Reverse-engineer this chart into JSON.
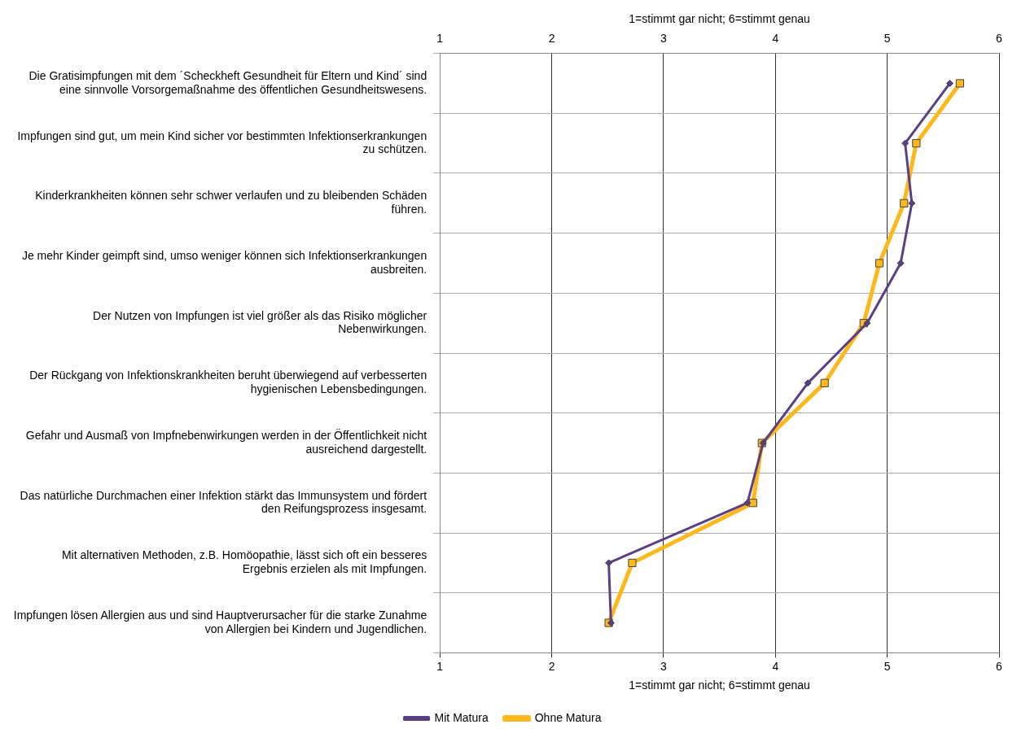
{
  "chart_data": {
    "type": "line",
    "orientation": "horizontal",
    "categories": [
      "Die Gratisimpfungen mit dem ´Scheckheft Gesundheit für Eltern und Kind´ sind eine sinnvolle Vorsorgemaßnahme des öffentlichen Gesundheitswesens.",
      "Impfungen sind gut, um mein Kind sicher vor bestimmten Infektionserkrankungen zu schützen.",
      "Kinderkrankheiten können sehr schwer verlaufen und zu bleibenden Schäden führen.",
      "Je mehr Kinder geimpft sind, umso weniger können sich Infektionserkrankungen ausbreiten.",
      "Der Nutzen von Impfungen ist viel größer als das Risiko möglicher Nebenwirkungen.",
      "Der Rückgang von Infektionskrankheiten beruht überwiegend auf verbesserten hygienischen Lebensbedingungen.",
      "Gefahr und Ausmaß von Impfnebenwirkungen werden in der Öffentlichkeit nicht ausreichend dargestellt.",
      "Das natürliche Durchmachen einer Infektion stärkt das Immunsystem und fördert den Reifungsprozess insgesamt.",
      "Mit alternativen Methoden, z.B. Homöopathie, lässt sich oft ein besseres Ergebnis erzielen als mit Impfungen.",
      "Impfungen lösen Allergien aus und sind Hauptverursacher für die starke Zunahme von Allergien bei Kindern und Jugendlichen."
    ],
    "series": [
      {
        "name": "Mit Matura",
        "color": "#5b3f86",
        "marker": "diamond",
        "values": [
          5.56,
          5.16,
          5.22,
          5.12,
          4.82,
          4.29,
          3.89,
          3.75,
          2.51,
          2.53
        ]
      },
      {
        "name": "Ohne Matura",
        "color": "#ffb81c",
        "marker": "square",
        "values": [
          5.65,
          5.26,
          5.15,
          4.93,
          4.79,
          4.44,
          3.88,
          3.8,
          2.72,
          2.51
        ]
      }
    ],
    "xlabel": "1=stimmt gar nicht; 6=stimmt genau",
    "xlim": [
      1,
      6
    ],
    "xticks": [
      1,
      2,
      3,
      4,
      5,
      6
    ],
    "x2label": "1=stimmt gar nicht; 6=stimmt genau",
    "x2lim": [
      1,
      6
    ],
    "x2ticks": [
      1,
      2,
      3,
      4,
      5,
      6
    ],
    "grid": true,
    "legend": "bottom",
    "line_style": "solid"
  }
}
